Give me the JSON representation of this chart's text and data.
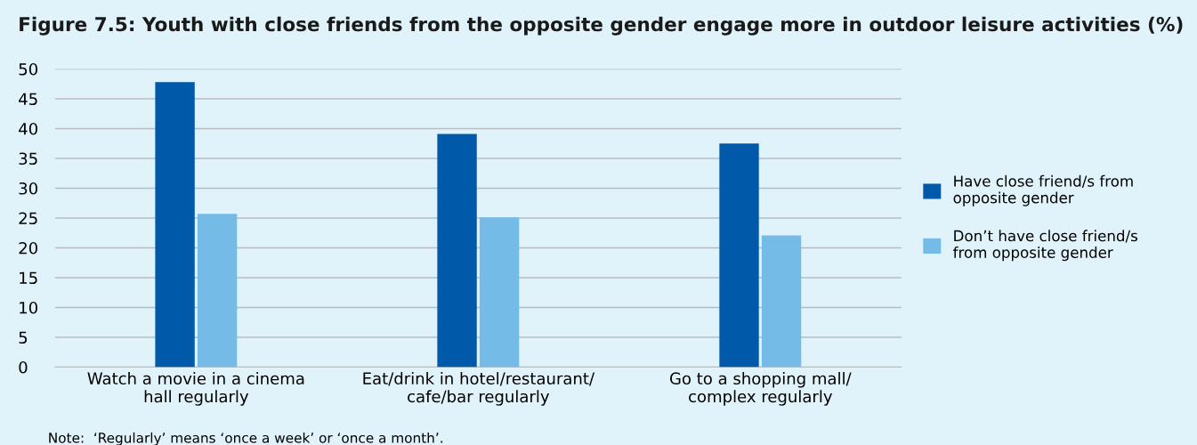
{
  "chart_data": {
    "type": "bar",
    "title": "Figure 7.5: Youth with close friends from the opposite gender engage more in outdoor leisure activities (%)",
    "categories": [
      "Watch a movie in a cinema\nhall regularly",
      "Eat/drink in hotel/restaurant/\ncafe/bar regularly",
      "Go to a shopping mall/\ncomplex regularly"
    ],
    "series": [
      {
        "name": "Have close friend/s from\nopposite gender",
        "color": "#0059a9",
        "values": [
          47.8,
          39.1,
          37.5
        ]
      },
      {
        "name": "Don’t have close friend/s\nfrom opposite gender",
        "color": "#74bce7",
        "values": [
          25.7,
          25.1,
          22.1
        ]
      }
    ],
    "ylim": [
      0,
      50
    ],
    "yticks": [
      0,
      5,
      10,
      15,
      20,
      25,
      30,
      35,
      40,
      45,
      50
    ],
    "grid": "y",
    "legend": "right",
    "annotations": [
      "Note:  ‘Regularly’ means ‘once a week’ or ‘once a month’."
    ]
  }
}
